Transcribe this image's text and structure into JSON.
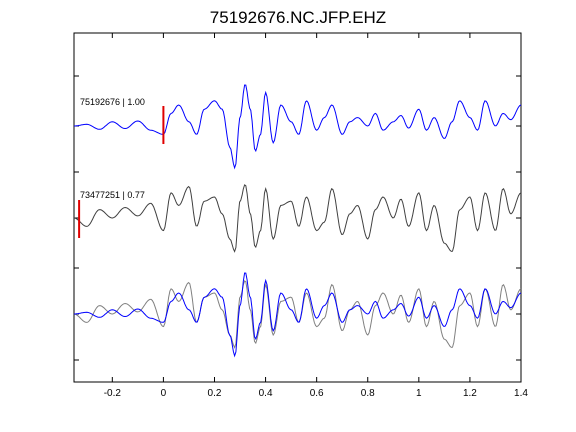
{
  "chart_data": {
    "type": "line",
    "title": "75192676.NC.JFP.EHZ",
    "xlabel": "",
    "ylabel": "",
    "xlim": [
      -0.35,
      1.4
    ],
    "x_ticks": [
      -0.2,
      0,
      0.2,
      0.4,
      0.6,
      0.8,
      1,
      1.2,
      1.4
    ],
    "x_tick_labels": [
      "-0.2",
      "0",
      "0.2",
      "0.4",
      "0.6",
      "0.8",
      "1",
      "1.2",
      "1.4"
    ],
    "grid": false,
    "legend": "none",
    "colors": {
      "primary": "#0000ff",
      "secondary": "#404040",
      "overlay_gray": "#808080",
      "pick": "#e00000"
    },
    "traces": [
      {
        "label": "75192676 | 1.00",
        "color": "#0000ff",
        "pick_time": 0.0,
        "x": [
          -0.35,
          -0.3,
          -0.25,
          -0.2,
          -0.15,
          -0.1,
          -0.05,
          0.0,
          0.03,
          0.06,
          0.1,
          0.13,
          0.16,
          0.2,
          0.23,
          0.26,
          0.28,
          0.3,
          0.32,
          0.34,
          0.36,
          0.38,
          0.4,
          0.43,
          0.46,
          0.5,
          0.53,
          0.56,
          0.6,
          0.63,
          0.66,
          0.7,
          0.73,
          0.76,
          0.8,
          0.83,
          0.86,
          0.9,
          0.93,
          0.96,
          1.0,
          1.03,
          1.06,
          1.1,
          1.13,
          1.16,
          1.2,
          1.23,
          1.26,
          1.3,
          1.33,
          1.36,
          1.4
        ],
        "y": [
          0.0,
          0.04,
          -0.08,
          0.1,
          -0.06,
          0.12,
          -0.1,
          -0.2,
          0.3,
          0.5,
          0.1,
          -0.2,
          0.4,
          0.6,
          0.4,
          -0.5,
          -1.0,
          0.2,
          1.0,
          0.4,
          -0.6,
          -0.2,
          0.8,
          -0.4,
          0.5,
          0.1,
          -0.2,
          0.6,
          -0.1,
          0.2,
          0.5,
          -0.2,
          0.1,
          0.2,
          0.0,
          0.3,
          -0.1,
          0.1,
          0.25,
          -0.05,
          0.4,
          -0.1,
          0.2,
          -0.3,
          0.1,
          0.6,
          0.2,
          -0.1,
          0.6,
          0.0,
          0.3,
          0.15,
          0.5
        ]
      },
      {
        "label": "73477251 | 0.77",
        "color": "#404040",
        "pick_time": -0.33,
        "x": [
          -0.35,
          -0.3,
          -0.25,
          -0.2,
          -0.15,
          -0.1,
          -0.05,
          0.0,
          0.03,
          0.06,
          0.1,
          0.13,
          0.16,
          0.2,
          0.23,
          0.26,
          0.28,
          0.3,
          0.32,
          0.34,
          0.36,
          0.38,
          0.4,
          0.43,
          0.46,
          0.5,
          0.53,
          0.56,
          0.6,
          0.63,
          0.66,
          0.7,
          0.73,
          0.76,
          0.8,
          0.83,
          0.86,
          0.9,
          0.93,
          0.96,
          1.0,
          1.03,
          1.06,
          1.1,
          1.13,
          1.16,
          1.2,
          1.23,
          1.26,
          1.3,
          1.33,
          1.36,
          1.4
        ],
        "y": [
          0.0,
          -0.2,
          0.2,
          0.0,
          0.25,
          0.05,
          0.35,
          -0.3,
          0.6,
          0.3,
          0.75,
          -0.2,
          0.4,
          0.5,
          0.1,
          -0.5,
          -0.8,
          0.4,
          0.8,
          0.1,
          -0.7,
          -0.3,
          0.7,
          -0.5,
          0.3,
          0.4,
          -0.2,
          0.5,
          -0.3,
          -0.1,
          0.7,
          -0.4,
          0.1,
          0.3,
          -0.5,
          0.2,
          0.5,
          0.0,
          0.45,
          -0.2,
          0.6,
          -0.3,
          0.3,
          -0.6,
          -0.8,
          0.2,
          0.5,
          -0.3,
          0.6,
          -0.3,
          0.7,
          0.1,
          0.6
        ]
      },
      {
        "label": "",
        "overlay": true,
        "colors": [
          "#808080",
          "#0000ff"
        ],
        "note_series": "overlay of both traces"
      }
    ]
  }
}
